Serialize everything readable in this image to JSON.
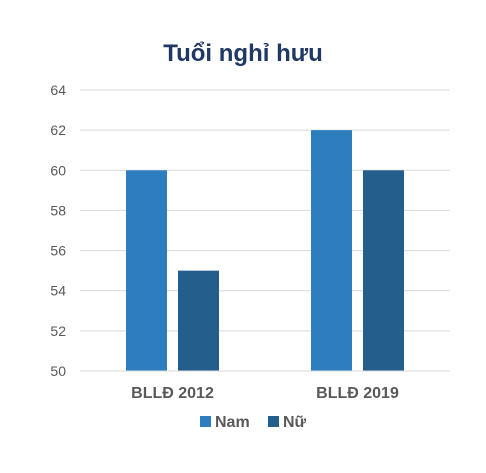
{
  "chart_data": {
    "type": "bar",
    "title": "Tuổi nghỉ hưu",
    "categories": [
      "BLLĐ 2012",
      "BLLĐ 2019"
    ],
    "series": [
      {
        "name": "Nam",
        "values": [
          60,
          62
        ],
        "color": "#2e7ebf"
      },
      {
        "name": "Nữ",
        "values": [
          55,
          60
        ],
        "color": "#245e8c"
      }
    ],
    "ylim": [
      50,
      64
    ],
    "yticks": [
      50,
      52,
      54,
      56,
      58,
      60,
      62,
      64
    ],
    "grid": true,
    "legend_position": "bottom"
  }
}
